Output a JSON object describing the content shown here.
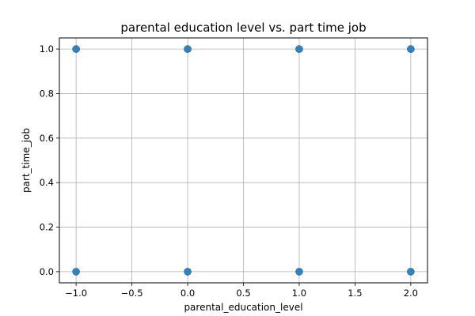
{
  "chart_data": {
    "type": "scatter",
    "title": "parental education level vs. part time job",
    "xlabel": "parental_education_level",
    "ylabel": "part_time_job",
    "xlim": [
      -1.15,
      2.15
    ],
    "ylim": [
      -0.05,
      1.05
    ],
    "x_ticks": [
      -1.0,
      -0.5,
      0.0,
      0.5,
      1.0,
      1.5,
      2.0
    ],
    "y_ticks": [
      0.0,
      0.2,
      0.4,
      0.6,
      0.8,
      1.0
    ],
    "x_tick_labels": [
      "−1.0",
      "−0.5",
      "0.0",
      "0.5",
      "1.0",
      "1.5",
      "2.0"
    ],
    "y_tick_labels": [
      "0.0",
      "0.2",
      "0.4",
      "0.6",
      "0.8",
      "1.0"
    ],
    "grid": true,
    "point_color": "#1f77b4",
    "points": [
      {
        "x": -1,
        "y": 1
      },
      {
        "x": 0,
        "y": 1
      },
      {
        "x": 1,
        "y": 1
      },
      {
        "x": 2,
        "y": 1
      },
      {
        "x": -1,
        "y": 0
      },
      {
        "x": 0,
        "y": 0
      },
      {
        "x": 1,
        "y": 0
      },
      {
        "x": 2,
        "y": 0
      }
    ]
  }
}
